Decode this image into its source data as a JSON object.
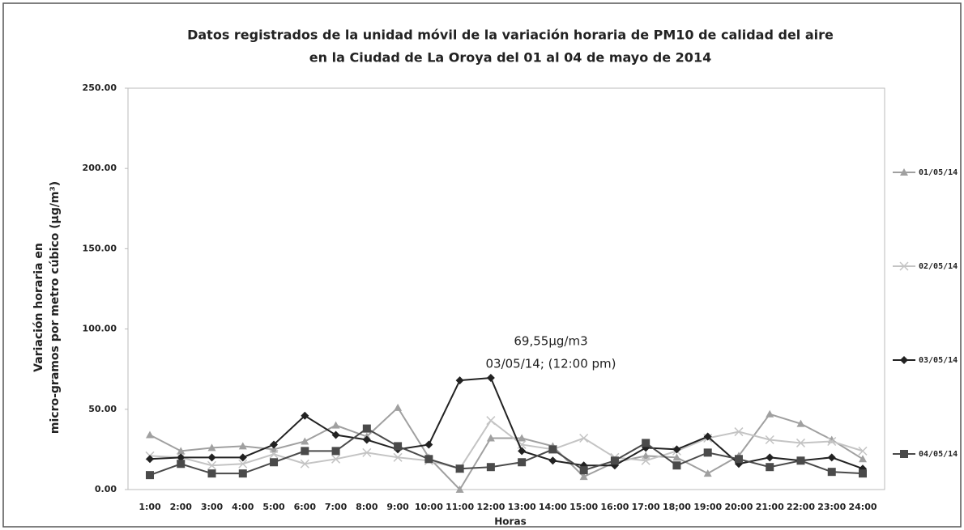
{
  "chart_data": {
    "type": "line",
    "title": "Datos registrados de la unidad móvil de la variación horaria de PM10 de calidad del aire",
    "subtitle": "en la Ciudad de La Oroya del 01 al 04 de mayo de 2014",
    "y_label": [
      "Variación horaria en",
      "micro-gramos por metro cúbico (µg/m³)"
    ],
    "x_label": "Horas",
    "annotation": [
      "69,55µg/m3",
      "03/05/14; (12:00 pm)"
    ],
    "categories": [
      "1:00",
      "2:00",
      "3:00",
      "4:00",
      "5:00",
      "6:00",
      "7:00",
      "8:00",
      "9:00",
      "10:00",
      "11:00",
      "12:00",
      "13:00",
      "14:00",
      "15:00",
      "16:00",
      "17:00",
      "18;00",
      "19:00",
      "20:00",
      "21:00",
      "22:00",
      "23:00",
      "24:00"
    ],
    "series": [
      {
        "name": "01/05/14",
        "color": "#a0a0a0",
        "marker": "triangle",
        "values": [
          34,
          24,
          26,
          27,
          25,
          30,
          40,
          33,
          51,
          20,
          0,
          32,
          32,
          27,
          8,
          17,
          21,
          20,
          10,
          21,
          47,
          41,
          31,
          19
        ]
      },
      {
        "name": "02/05/14",
        "color": "#c4c4c4",
        "marker": "x",
        "values": [
          21,
          20,
          15,
          16,
          22,
          16,
          19,
          23,
          20,
          18,
          13,
          43,
          28,
          25,
          32,
          20,
          18,
          24,
          32,
          36,
          31,
          29,
          30,
          24
        ]
      },
      {
        "name": "03/05/14",
        "color": "#222222",
        "marker": "diamond",
        "values": [
          19,
          20,
          20,
          20,
          28,
          46,
          34,
          31,
          25,
          28,
          68,
          69.55,
          24,
          18,
          15,
          15,
          26,
          25,
          33,
          16,
          20,
          18,
          20,
          13
        ]
      },
      {
        "name": "04/05/14",
        "color": "#4a4a4a",
        "marker": "square",
        "values": [
          9,
          16,
          10,
          10,
          17,
          24,
          24,
          38,
          27,
          19,
          13,
          14,
          17,
          25,
          12,
          18,
          29,
          15,
          23,
          19,
          14,
          18,
          11,
          10
        ]
      }
    ],
    "ylim": [
      0,
      250
    ],
    "yticks": [
      {
        "value": 0,
        "label": "0.00"
      },
      {
        "value": 50,
        "label": "50.00"
      },
      {
        "value": 100,
        "label": "100.00"
      },
      {
        "value": 150,
        "label": "150.00"
      },
      {
        "value": 200,
        "label": "200.00"
      },
      {
        "value": 250,
        "label": "250.00"
      }
    ],
    "grid": false,
    "legend": "right"
  }
}
